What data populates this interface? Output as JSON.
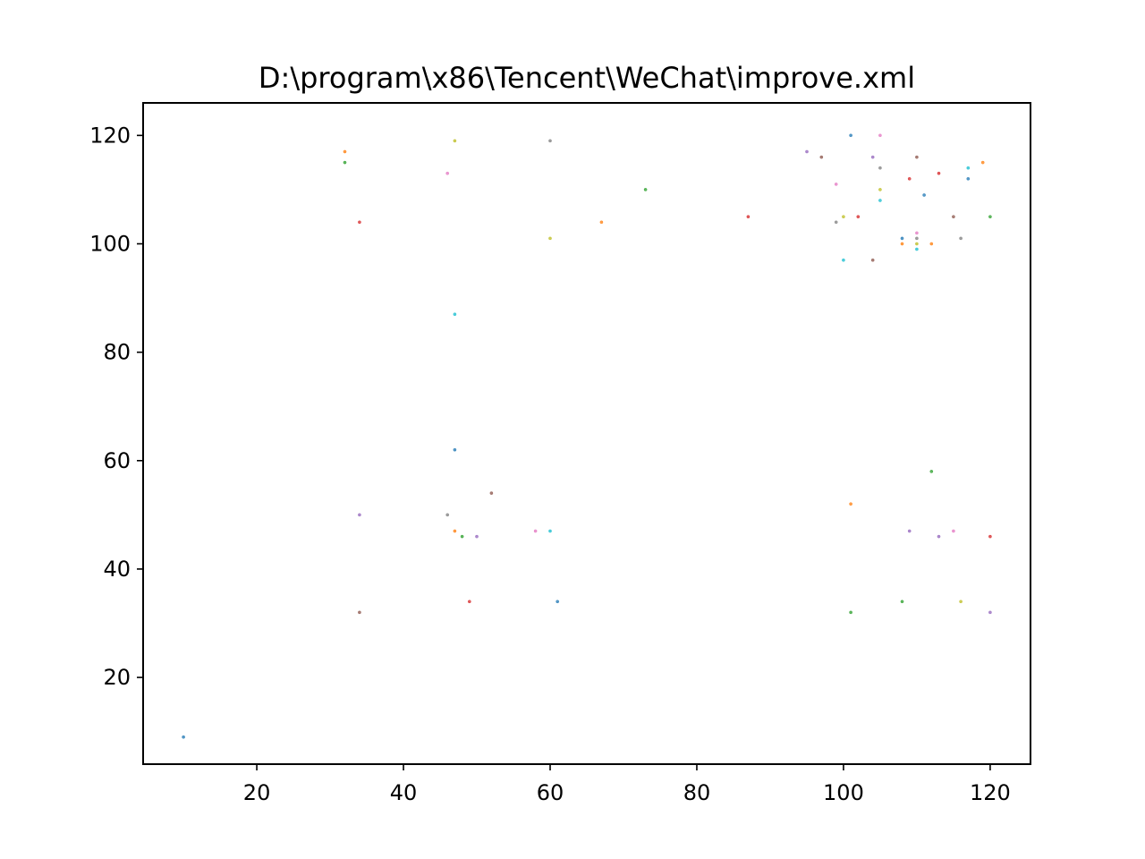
{
  "chart_data": {
    "type": "scatter",
    "title": "D:\\program\\x86\\Tencent\\WeChat\\improve.xml",
    "xlabel": "",
    "ylabel": "",
    "xlim": [
      4.5,
      125.5
    ],
    "ylim": [
      4,
      126
    ],
    "xticks": [
      20,
      40,
      60,
      80,
      100,
      120
    ],
    "yticks": [
      20,
      40,
      60,
      80,
      100,
      120
    ],
    "grid": false,
    "legend": "none",
    "marker_colors": [
      "#1f77b4",
      "#ff7f0e",
      "#2ca02c",
      "#d62728",
      "#9467bd",
      "#8c564b",
      "#e377c2",
      "#7f7f7f",
      "#bcbd22",
      "#17becf"
    ],
    "points": [
      {
        "x": 10,
        "y": 9
      },
      {
        "x": 32,
        "y": 117
      },
      {
        "x": 32,
        "y": 115
      },
      {
        "x": 34,
        "y": 104
      },
      {
        "x": 34,
        "y": 50
      },
      {
        "x": 34,
        "y": 32
      },
      {
        "x": 46,
        "y": 113
      },
      {
        "x": 46,
        "y": 50
      },
      {
        "x": 47,
        "y": 119
      },
      {
        "x": 47,
        "y": 87
      },
      {
        "x": 47,
        "y": 62
      },
      {
        "x": 47,
        "y": 47
      },
      {
        "x": 48,
        "y": 46
      },
      {
        "x": 49,
        "y": 34
      },
      {
        "x": 50,
        "y": 46
      },
      {
        "x": 52,
        "y": 54
      },
      {
        "x": 58,
        "y": 47
      },
      {
        "x": 60,
        "y": 119
      },
      {
        "x": 60,
        "y": 101
      },
      {
        "x": 60,
        "y": 47
      },
      {
        "x": 61,
        "y": 34
      },
      {
        "x": 67,
        "y": 104
      },
      {
        "x": 73,
        "y": 110
      },
      {
        "x": 87,
        "y": 105
      },
      {
        "x": 95,
        "y": 117
      },
      {
        "x": 97,
        "y": 116
      },
      {
        "x": 99,
        "y": 111
      },
      {
        "x": 99,
        "y": 104
      },
      {
        "x": 100,
        "y": 105
      },
      {
        "x": 100,
        "y": 97
      },
      {
        "x": 101,
        "y": 120
      },
      {
        "x": 101,
        "y": 52
      },
      {
        "x": 101,
        "y": 32
      },
      {
        "x": 102,
        "y": 105
      },
      {
        "x": 104,
        "y": 116
      },
      {
        "x": 104,
        "y": 97
      },
      {
        "x": 105,
        "y": 120
      },
      {
        "x": 105,
        "y": 114
      },
      {
        "x": 105,
        "y": 110
      },
      {
        "x": 105,
        "y": 108
      },
      {
        "x": 108,
        "y": 101
      },
      {
        "x": 108,
        "y": 100
      },
      {
        "x": 108,
        "y": 34
      },
      {
        "x": 109,
        "y": 112
      },
      {
        "x": 109,
        "y": 47
      },
      {
        "x": 110,
        "y": 116
      },
      {
        "x": 110,
        "y": 102
      },
      {
        "x": 110,
        "y": 101
      },
      {
        "x": 110,
        "y": 100
      },
      {
        "x": 110,
        "y": 99
      },
      {
        "x": 111,
        "y": 109
      },
      {
        "x": 112,
        "y": 100
      },
      {
        "x": 112,
        "y": 58
      },
      {
        "x": 113,
        "y": 113
      },
      {
        "x": 113,
        "y": 46
      },
      {
        "x": 115,
        "y": 105
      },
      {
        "x": 115,
        "y": 47
      },
      {
        "x": 116,
        "y": 101
      },
      {
        "x": 116,
        "y": 34
      },
      {
        "x": 117,
        "y": 114
      },
      {
        "x": 117,
        "y": 112
      },
      {
        "x": 119,
        "y": 115
      },
      {
        "x": 120,
        "y": 105
      },
      {
        "x": 120,
        "y": 46
      },
      {
        "x": 120,
        "y": 32
      }
    ]
  }
}
